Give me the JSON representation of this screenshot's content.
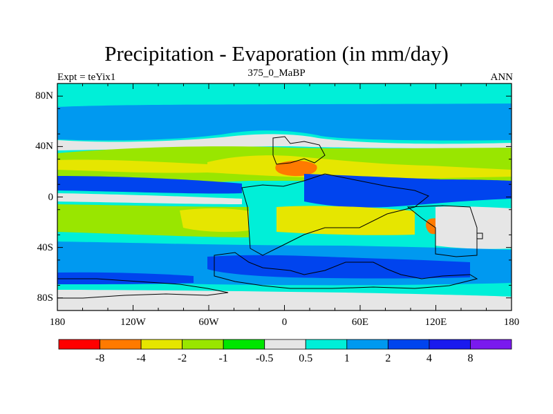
{
  "title": "Precipitation - Evaporation (in mm/day)",
  "subtitle": "375_0_MaBP",
  "left_label": "Expt = teYix1",
  "right_label": "ANN",
  "map": {
    "y_ticks": [
      {
        "label": "80N",
        "lat": 80
      },
      {
        "label": "40N",
        "lat": 40
      },
      {
        "label": "0",
        "lat": 0
      },
      {
        "label": "40S",
        "lat": -40
      },
      {
        "label": "80S",
        "lat": -80
      }
    ],
    "x_ticks": [
      {
        "label": "180",
        "lon": -180
      },
      {
        "label": "120W",
        "lon": -120
      },
      {
        "label": "60W",
        "lon": -60
      },
      {
        "label": "0",
        "lon": 0
      },
      {
        "label": "60E",
        "lon": 60
      },
      {
        "label": "120E",
        "lon": 120
      },
      {
        "label": "180",
        "lon": 180
      }
    ],
    "background_color": "#00efd8",
    "land_outline_color": "#000000"
  },
  "colorbar": {
    "colors": [
      "#ff0000",
      "#ff7a00",
      "#e6e600",
      "#99e600",
      "#00e600",
      "#e6e6e6",
      "#00efd8",
      "#0099f0",
      "#0044ee",
      "#1a1aee",
      "#7a1aee"
    ],
    "labels": [
      "-8",
      "-4",
      "-2",
      "-1",
      "-0.5",
      "0.5",
      "1",
      "2",
      "4",
      "8"
    ]
  }
}
